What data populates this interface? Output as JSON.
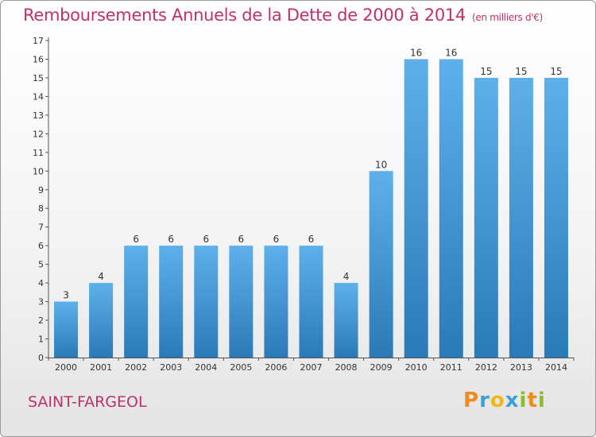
{
  "chart_data": {
    "type": "bar",
    "title": "Remboursements Annuels de la Dette de 2000 à 2014",
    "unit": "(en milliers d'€)",
    "categories": [
      "2000",
      "2001",
      "2002",
      "2003",
      "2004",
      "2005",
      "2006",
      "2007",
      "2008",
      "2009",
      "2010",
      "2011",
      "2012",
      "2013",
      "2014"
    ],
    "values": [
      3,
      4,
      6,
      6,
      6,
      6,
      6,
      6,
      4,
      10,
      16,
      16,
      15,
      15,
      15
    ],
    "ylim": [
      0,
      17
    ],
    "yticks": [
      0,
      1,
      2,
      3,
      4,
      5,
      6,
      7,
      8,
      9,
      10,
      11,
      12,
      13,
      14,
      15,
      16,
      17
    ],
    "grid": false,
    "legend": "none",
    "colors": {
      "bar_top": "#5eb0ea",
      "bar_bottom": "#2a7ab8",
      "title": "#c0306a"
    }
  },
  "footer": {
    "commune": "SAINT-FARGEOL",
    "logo": {
      "text": "Proxiti",
      "letters": [
        {
          "ch": "P",
          "color": "#f08a1c"
        },
        {
          "ch": "r",
          "color": "#3aa0dc"
        },
        {
          "ch": "o",
          "color": "#f2b617"
        },
        {
          "ch": "x",
          "color": "#3aa0dc"
        },
        {
          "ch": "i",
          "color": "#8cbf26"
        },
        {
          "ch": "t",
          "color": "#f08a1c"
        },
        {
          "ch": "i",
          "color": "#8cbf26"
        }
      ]
    }
  }
}
